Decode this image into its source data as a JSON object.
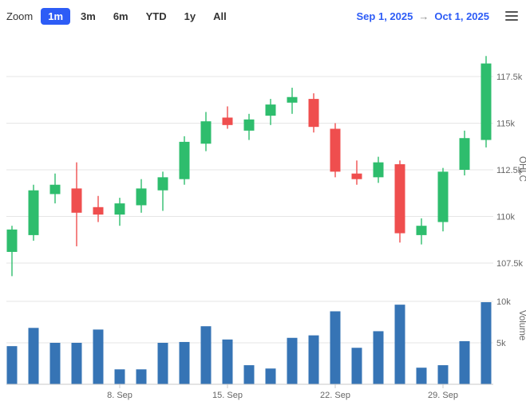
{
  "toolbar": {
    "zoom_label": "Zoom",
    "buttons": [
      {
        "label": "1m",
        "selected": true
      },
      {
        "label": "3m",
        "selected": false
      },
      {
        "label": "6m",
        "selected": false
      },
      {
        "label": "YTD",
        "selected": false
      },
      {
        "label": "1y",
        "selected": false
      },
      {
        "label": "All",
        "selected": false
      }
    ],
    "range": {
      "from": "Sep 1, 2025",
      "arrow": "→",
      "to": "Oct 1, 2025"
    },
    "menu_icon": "hamburger-menu-icon"
  },
  "colors": {
    "up_candle": "#2ebd6d",
    "down_candle": "#ef4e4e",
    "volume_bar": "#3674b5",
    "selected_button": "#2d5cf6",
    "date_text": "#2d5cf6",
    "gridline": "#e6e6e6",
    "axis_label": "#666666",
    "axis_line": "#c9c9c9"
  },
  "chart_data": {
    "type": "candlestick",
    "title": "",
    "x_axis": {
      "ticks": [
        {
          "label": "8. Sep",
          "index": 5
        },
        {
          "label": "15. Sep",
          "index": 10
        },
        {
          "label": "22. Sep",
          "index": 15
        },
        {
          "label": "29. Sep",
          "index": 20
        }
      ]
    },
    "price_axis": {
      "title": "OHLC",
      "side": "right",
      "ticks": [
        {
          "label": "117.5k",
          "value": 117500
        },
        {
          "label": "115k",
          "value": 115000
        },
        {
          "label": "112.5k",
          "value": 112500
        },
        {
          "label": "110k",
          "value": 110000
        },
        {
          "label": "107.5k",
          "value": 107500
        }
      ]
    },
    "volume_axis": {
      "title": "Volume",
      "side": "right",
      "ticks": [
        {
          "label": "10k",
          "value": 10000
        },
        {
          "label": "5k",
          "value": 5000
        }
      ]
    },
    "ohlc_columns": [
      "date",
      "open",
      "high",
      "low",
      "close"
    ],
    "ohlc": [
      [
        "2025-09-01",
        108100,
        109500,
        106800,
        109300
      ],
      [
        "2025-09-02",
        109000,
        111700,
        108700,
        111400
      ],
      [
        "2025-09-03",
        111200,
        112300,
        110700,
        111700
      ],
      [
        "2025-09-04",
        111500,
        112900,
        108400,
        110200
      ],
      [
        "2025-09-05",
        110500,
        111100,
        109700,
        110100
      ],
      [
        "2025-09-08",
        110100,
        111000,
        109500,
        110700
      ],
      [
        "2025-09-09",
        110600,
        112000,
        110200,
        111500
      ],
      [
        "2025-09-10",
        111400,
        112400,
        110300,
        112100
      ],
      [
        "2025-09-11",
        112000,
        114300,
        111700,
        114000
      ],
      [
        "2025-09-12",
        113900,
        115600,
        113500,
        115100
      ],
      [
        "2025-09-15",
        115300,
        115900,
        114700,
        114900
      ],
      [
        "2025-09-16",
        114600,
        115500,
        114100,
        115200
      ],
      [
        "2025-09-17",
        115400,
        116300,
        114900,
        116000
      ],
      [
        "2025-09-18",
        116100,
        116900,
        115500,
        116400
      ],
      [
        "2025-09-19",
        116300,
        116600,
        114500,
        114800
      ],
      [
        "2025-09-22",
        114700,
        115000,
        112100,
        112400
      ],
      [
        "2025-09-23",
        112300,
        113000,
        111700,
        112000
      ],
      [
        "2025-09-24",
        112100,
        113200,
        111800,
        112900
      ],
      [
        "2025-09-25",
        112800,
        113000,
        108600,
        109100
      ],
      [
        "2025-09-26",
        109000,
        109900,
        108500,
        109500
      ],
      [
        "2025-09-29",
        109700,
        112600,
        109200,
        112400
      ],
      [
        "2025-09-30",
        112500,
        114600,
        112200,
        114200
      ],
      [
        "2025-10-01",
        114100,
        118600,
        113700,
        118200
      ]
    ],
    "volume": [
      4600,
      6800,
      5000,
      5000,
      6600,
      1800,
      1800,
      5000,
      5100,
      7000,
      5400,
      2300,
      1900,
      5600,
      5900,
      8800,
      4400,
      6400,
      9600,
      2000,
      2300,
      5200,
      9900
    ]
  }
}
